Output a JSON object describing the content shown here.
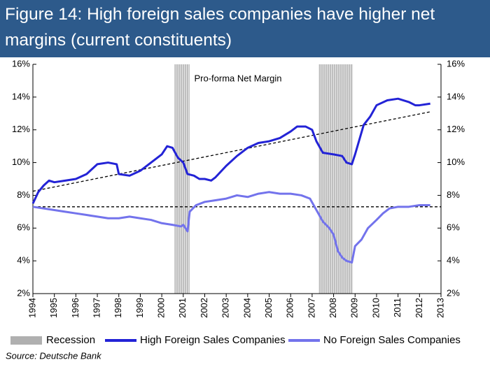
{
  "chart_data": {
    "type": "line",
    "title": "Figure 14: High foreign sales companies have higher net margins (current constituents)",
    "annotation": "Pro-forma Net Margin",
    "source": "Source: Deutsche Bank",
    "xlim": [
      1994,
      2013
    ],
    "xticks": [
      1994,
      1995,
      1996,
      1997,
      1998,
      1999,
      2000,
      2001,
      2002,
      2003,
      2004,
      2005,
      2006,
      2007,
      2008,
      2009,
      2010,
      2011,
      2012,
      2013
    ],
    "ylim": [
      2,
      16
    ],
    "yticks": [
      {
        "value": 2,
        "label": "2%"
      },
      {
        "value": 4,
        "label": "4%"
      },
      {
        "value": 6,
        "label": "6%"
      },
      {
        "value": 8,
        "label": "8%"
      },
      {
        "value": 10,
        "label": "10%"
      },
      {
        "value": 12,
        "label": "12%"
      },
      {
        "value": 14,
        "label": "14%"
      },
      {
        "value": 16,
        "label": "16%"
      }
    ],
    "y2lim": [
      2,
      16
    ],
    "y2ticks": [
      {
        "value": 2,
        "label": "2%"
      },
      {
        "value": 4,
        "label": "4%"
      },
      {
        "value": 6,
        "label": "6%"
      },
      {
        "value": 8,
        "label": "8%"
      },
      {
        "value": 10,
        "label": "10%"
      },
      {
        "value": 12,
        "label": "12%"
      },
      {
        "value": 14,
        "label": "14%"
      },
      {
        "value": 16,
        "label": "16%"
      }
    ],
    "recession": {
      "name": "Recession",
      "color": "#b0b0b0",
      "periods": [
        [
          2000.6,
          2001.3
        ],
        [
          2007.3,
          2008.9
        ]
      ]
    },
    "series": [
      {
        "name": "High Foreign Sales Companies",
        "color": "#2323d6",
        "x": [
          1994.0,
          1994.25,
          1994.5,
          1994.75,
          1995.0,
          1995.5,
          1996.0,
          1996.5,
          1997.0,
          1997.5,
          1997.9,
          1998.0,
          1998.5,
          1999.0,
          1999.5,
          2000.0,
          2000.25,
          2000.5,
          2000.75,
          2001.0,
          2001.2,
          2001.5,
          2001.75,
          2002.0,
          2002.3,
          2002.5,
          2003.0,
          2003.5,
          2004.0,
          2004.5,
          2005.0,
          2005.5,
          2006.0,
          2006.3,
          2006.7,
          2007.0,
          2007.2,
          2007.5,
          2008.0,
          2008.4,
          2008.6,
          2008.85,
          2009.0,
          2009.4,
          2009.7,
          2010.0,
          2010.5,
          2011.0,
          2011.5,
          2011.8,
          2012.0,
          2012.5
        ],
        "values": [
          7.5,
          8.2,
          8.6,
          8.9,
          8.8,
          8.9,
          9.0,
          9.3,
          9.9,
          10.0,
          9.9,
          9.3,
          9.2,
          9.5,
          10.0,
          10.5,
          11.0,
          10.9,
          10.3,
          10.0,
          9.3,
          9.2,
          9.0,
          9.0,
          8.9,
          9.1,
          9.8,
          10.4,
          10.9,
          11.2,
          11.3,
          11.5,
          11.9,
          12.2,
          12.2,
          12.0,
          11.3,
          10.6,
          10.5,
          10.4,
          10.0,
          9.9,
          10.5,
          12.3,
          12.8,
          13.5,
          13.8,
          13.9,
          13.7,
          13.5,
          13.5,
          13.6
        ]
      },
      {
        "name": "No Foreign Sales Companies",
        "color": "#7373ec",
        "x": [
          1994.0,
          1994.5,
          1995.0,
          1995.5,
          1996.0,
          1996.5,
          1997.0,
          1997.5,
          1998.0,
          1998.5,
          1999.0,
          1999.5,
          2000.0,
          2000.5,
          2000.9,
          2001.0,
          2001.2,
          2001.3,
          2001.6,
          2002.0,
          2002.5,
          2003.0,
          2003.5,
          2004.0,
          2004.5,
          2005.0,
          2005.5,
          2006.0,
          2006.5,
          2006.9,
          2007.2,
          2007.5,
          2007.8,
          2008.0,
          2008.2,
          2008.4,
          2008.6,
          2008.85,
          2009.0,
          2009.3,
          2009.6,
          2010.0,
          2010.3,
          2010.6,
          2011.0,
          2011.5,
          2012.0,
          2012.5
        ],
        "values": [
          7.3,
          7.2,
          7.1,
          7.0,
          6.9,
          6.8,
          6.7,
          6.6,
          6.6,
          6.7,
          6.6,
          6.5,
          6.3,
          6.2,
          6.1,
          6.2,
          5.8,
          7.0,
          7.4,
          7.6,
          7.7,
          7.8,
          8.0,
          7.9,
          8.1,
          8.2,
          8.1,
          8.1,
          8.0,
          7.8,
          7.1,
          6.4,
          6.0,
          5.6,
          4.6,
          4.2,
          4.0,
          3.9,
          4.9,
          5.3,
          6.0,
          6.5,
          6.9,
          7.2,
          7.3,
          7.3,
          7.4,
          7.4
        ]
      }
    ],
    "trend_lines": [
      {
        "color": "#000000",
        "x": [
          1994,
          2012.5
        ],
        "values": [
          8.25,
          13.1
        ]
      },
      {
        "color": "#000000",
        "x": [
          1994,
          2013
        ],
        "values": [
          7.3,
          7.3
        ]
      }
    ]
  }
}
